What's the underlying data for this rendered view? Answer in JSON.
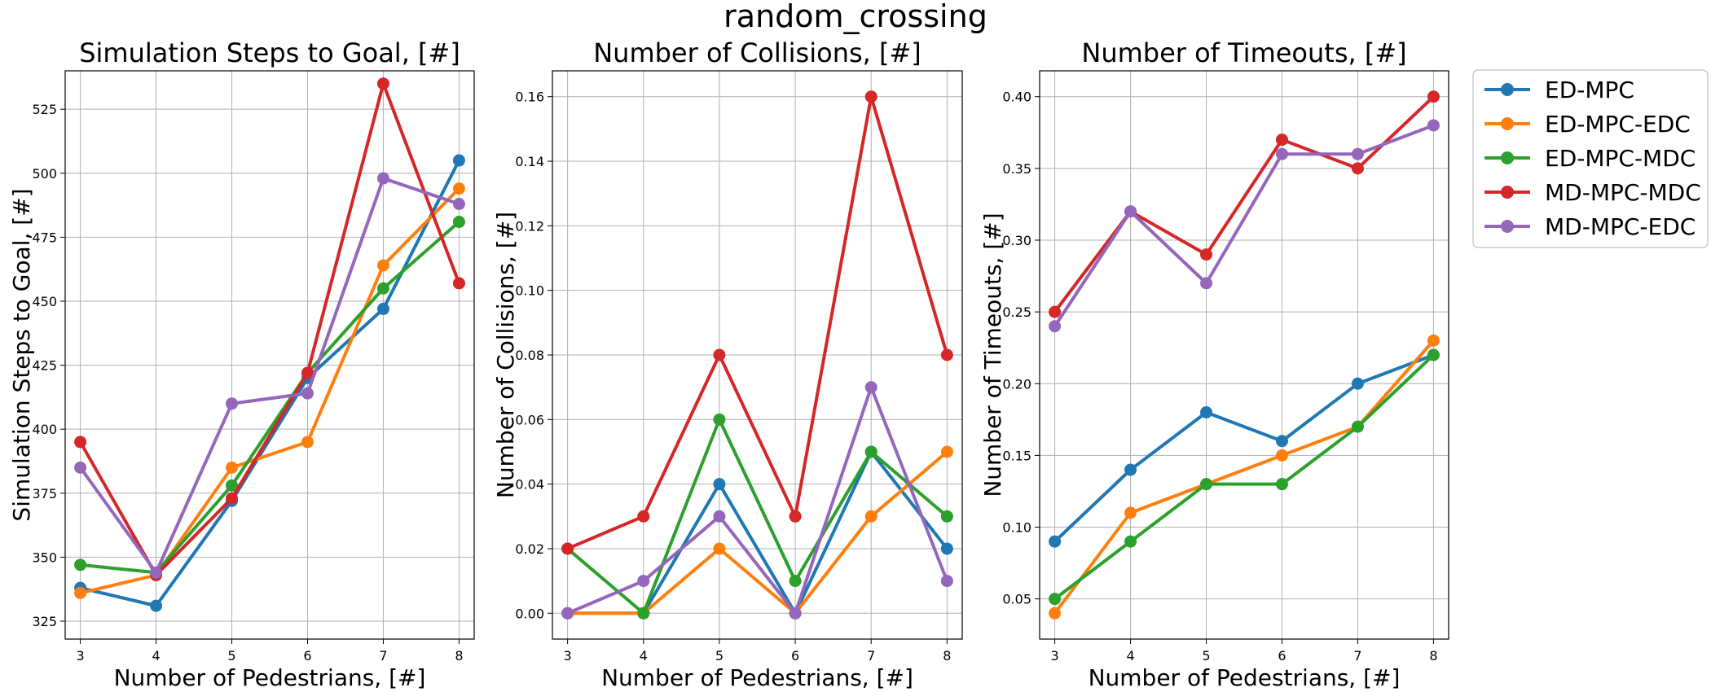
{
  "suptitle": "random_crossing",
  "colors": {
    "ED-MPC": "#1f77b4",
    "ED-MPC-EDC": "#ff7f0e",
    "ED-MPC-MDC": "#2ca02c",
    "MD-MPC-MDC": "#d62728",
    "MD-MPC-EDC": "#9467bd"
  },
  "legend": {
    "placement": "outside-right-top",
    "entries": [
      "ED-MPC",
      "ED-MPC-EDC",
      "ED-MPC-MDC",
      "MD-MPC-MDC",
      "MD-MPC-EDC"
    ]
  },
  "chart_data": [
    {
      "type": "line",
      "title": "Simulation Steps to Goal, [#]",
      "xlabel": "Number of Pedestrians, [#]",
      "ylabel": "Simulation Steps to Goal, [#]",
      "x": [
        3,
        4,
        5,
        6,
        7,
        8
      ],
      "xlim": [
        2.8,
        8.2
      ],
      "ylim": [
        318,
        540
      ],
      "yticks": [
        325,
        350,
        375,
        400,
        425,
        450,
        475,
        500,
        525
      ],
      "ytick_labels": [
        "325",
        "350",
        "375",
        "400",
        "425",
        "450",
        "475",
        "500",
        "525"
      ],
      "grid": true,
      "series": [
        {
          "name": "ED-MPC",
          "values": [
            338,
            331,
            372,
            420,
            447,
            505
          ]
        },
        {
          "name": "ED-MPC-EDC",
          "values": [
            336,
            343,
            385,
            395,
            464,
            494
          ]
        },
        {
          "name": "ED-MPC-MDC",
          "values": [
            347,
            344,
            378,
            422,
            455,
            481
          ]
        },
        {
          "name": "MD-MPC-MDC",
          "values": [
            395,
            343,
            373,
            422,
            535,
            457
          ]
        },
        {
          "name": "MD-MPC-EDC",
          "values": [
            385,
            344,
            410,
            414,
            498,
            488
          ]
        }
      ]
    },
    {
      "type": "line",
      "title": "Number of Collisions, [#]",
      "xlabel": "Number of Pedestrians, [#]",
      "ylabel": "Number of Collisions, [#]",
      "x": [
        3,
        4,
        5,
        6,
        7,
        8
      ],
      "xlim": [
        2.8,
        8.2
      ],
      "ylim": [
        -0.008,
        0.168
      ],
      "yticks": [
        0,
        0.02,
        0.04,
        0.06,
        0.08,
        0.1,
        0.12,
        0.14,
        0.16
      ],
      "ytick_labels": [
        "0.00",
        "0.02",
        "0.04",
        "0.06",
        "0.08",
        "0.10",
        "0.12",
        "0.14",
        "0.16"
      ],
      "grid": true,
      "series": [
        {
          "name": "ED-MPC",
          "values": [
            0.0,
            0.0,
            0.04,
            0.0,
            0.05,
            0.02
          ]
        },
        {
          "name": "ED-MPC-EDC",
          "values": [
            0.0,
            0.0,
            0.02,
            0.0,
            0.03,
            0.05
          ]
        },
        {
          "name": "ED-MPC-MDC",
          "values": [
            0.02,
            0.0,
            0.06,
            0.01,
            0.05,
            0.03
          ]
        },
        {
          "name": "MD-MPC-MDC",
          "values": [
            0.02,
            0.03,
            0.08,
            0.03,
            0.16,
            0.08
          ]
        },
        {
          "name": "MD-MPC-EDC",
          "values": [
            0.0,
            0.01,
            0.03,
            0.0,
            0.07,
            0.01
          ]
        }
      ]
    },
    {
      "type": "line",
      "title": "Number of Timeouts, [#]",
      "xlabel": "Number of Pedestrians, [#]",
      "ylabel": "Number of Timeouts, [#]",
      "x": [
        3,
        4,
        5,
        6,
        7,
        8
      ],
      "xlim": [
        2.8,
        8.2
      ],
      "ylim": [
        0.022,
        0.418
      ],
      "yticks": [
        0.05,
        0.1,
        0.15,
        0.2,
        0.25,
        0.3,
        0.35,
        0.4
      ],
      "ytick_labels": [
        "0.05",
        "0.10",
        "0.15",
        "0.20",
        "0.25",
        "0.30",
        "0.35",
        "0.40"
      ],
      "grid": true,
      "series": [
        {
          "name": "ED-MPC",
          "values": [
            0.09,
            0.14,
            0.18,
            0.16,
            0.2,
            0.22
          ]
        },
        {
          "name": "ED-MPC-EDC",
          "values": [
            0.04,
            0.11,
            0.13,
            0.15,
            0.17,
            0.23
          ]
        },
        {
          "name": "ED-MPC-MDC",
          "values": [
            0.05,
            0.09,
            0.13,
            0.13,
            0.17,
            0.22
          ]
        },
        {
          "name": "MD-MPC-MDC",
          "values": [
            0.25,
            0.32,
            0.29,
            0.37,
            0.35,
            0.4
          ]
        },
        {
          "name": "MD-MPC-EDC",
          "values": [
            0.24,
            0.32,
            0.27,
            0.36,
            0.36,
            0.38
          ]
        }
      ]
    }
  ]
}
